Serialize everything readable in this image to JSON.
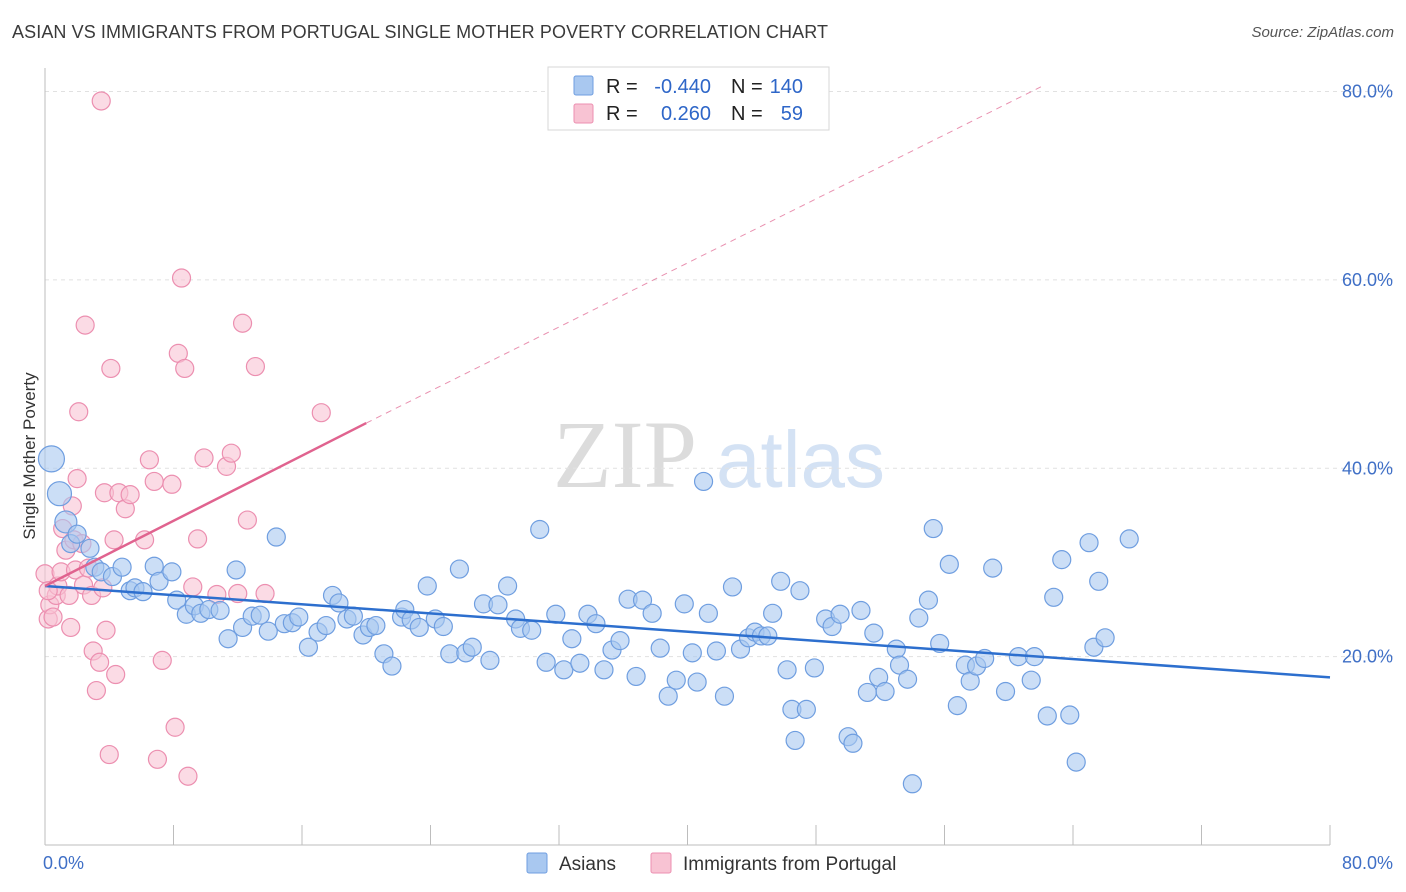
{
  "header": {
    "title": "ASIAN VS IMMIGRANTS FROM PORTUGAL SINGLE MOTHER POVERTY CORRELATION CHART",
    "source": "Source: ZipAtlas.com"
  },
  "watermark": {
    "zip": "ZIP",
    "atlas": "atlas"
  },
  "legend": {
    "r_label": "R =",
    "n_label": "N =",
    "rows": [
      {
        "series": "Asians",
        "r": "-0.440",
        "n": "140",
        "color": "#7aa6e6"
      },
      {
        "series": "Immigrants from Portugal",
        "r": "0.260",
        "n": "59",
        "color": "#f09ab7"
      }
    ]
  },
  "colors": {
    "asians_fill": "#a9c8f0",
    "asians_stroke": "#6f9ee0",
    "asians_line": "#2d6fce",
    "portugal_fill": "#f8c3d3",
    "portugal_stroke": "#ec8fb0",
    "portugal_line": "#e0638f",
    "grid": "#e1e1e1",
    "tick_label": "#3f6fc6"
  },
  "chart_data": {
    "type": "scatter",
    "title": "ASIAN VS IMMIGRANTS FROM PORTUGAL SINGLE MOTHER POVERTY CORRELATION CHART",
    "ylabel": "Single Mother Poverty",
    "xlabel": "",
    "xlim": [
      0,
      80
    ],
    "ylim": [
      0,
      82.5
    ],
    "x_tick_labels": [
      "0.0%",
      "80.0%"
    ],
    "y_ticks": [
      20,
      40,
      60,
      80
    ],
    "y_tick_labels": [
      "20.0%",
      "40.0%",
      "60.0%",
      "80.0%"
    ],
    "grid": true,
    "legend_position": "top-center",
    "series": [
      {
        "name": "Asians",
        "r": -0.44,
        "n": 140,
        "trend": {
          "x": [
            0,
            80
          ],
          "y": [
            27.5,
            17.8
          ]
        },
        "points": [
          [
            0.4,
            41.0
          ],
          [
            0.9,
            37.3
          ],
          [
            1.3,
            34.3
          ],
          [
            1.6,
            32.0
          ],
          [
            2.0,
            33.0
          ],
          [
            2.8,
            31.5
          ],
          [
            3.1,
            29.5
          ],
          [
            3.5,
            29.0
          ],
          [
            4.2,
            28.5
          ],
          [
            4.8,
            29.5
          ],
          [
            5.3,
            27.0
          ],
          [
            5.6,
            27.3
          ],
          [
            6.1,
            26.9
          ],
          [
            6.8,
            29.6
          ],
          [
            7.1,
            28.0
          ],
          [
            7.9,
            29.0
          ],
          [
            8.2,
            26.0
          ],
          [
            8.8,
            24.5
          ],
          [
            9.3,
            25.4
          ],
          [
            9.7,
            24.6
          ],
          [
            10.2,
            25.0
          ],
          [
            10.9,
            24.9
          ],
          [
            11.4,
            21.9
          ],
          [
            11.9,
            29.2
          ],
          [
            12.3,
            23.1
          ],
          [
            12.9,
            24.3
          ],
          [
            13.4,
            24.4
          ],
          [
            13.9,
            22.7
          ],
          [
            14.4,
            32.7
          ],
          [
            14.9,
            23.5
          ],
          [
            15.4,
            23.6
          ],
          [
            15.8,
            24.2
          ],
          [
            16.4,
            21.0
          ],
          [
            17.0,
            22.6
          ],
          [
            17.5,
            23.3
          ],
          [
            17.9,
            26.5
          ],
          [
            18.3,
            25.7
          ],
          [
            18.8,
            24.0
          ],
          [
            19.2,
            24.3
          ],
          [
            19.8,
            22.3
          ],
          [
            20.2,
            23.1
          ],
          [
            20.6,
            23.3
          ],
          [
            21.1,
            20.3
          ],
          [
            21.6,
            19.0
          ],
          [
            22.2,
            24.2
          ],
          [
            22.4,
            25.0
          ],
          [
            22.8,
            23.9
          ],
          [
            23.3,
            23.1
          ],
          [
            23.8,
            27.5
          ],
          [
            24.3,
            24.0
          ],
          [
            24.8,
            23.2
          ],
          [
            25.2,
            20.3
          ],
          [
            25.8,
            29.3
          ],
          [
            26.2,
            20.4
          ],
          [
            26.6,
            21.0
          ],
          [
            27.3,
            25.6
          ],
          [
            27.7,
            19.6
          ],
          [
            28.2,
            25.5
          ],
          [
            28.8,
            27.5
          ],
          [
            29.3,
            24.0
          ],
          [
            29.6,
            23.0
          ],
          [
            30.3,
            22.8
          ],
          [
            30.8,
            33.5
          ],
          [
            31.2,
            19.4
          ],
          [
            31.8,
            24.5
          ],
          [
            32.3,
            18.6
          ],
          [
            32.8,
            21.9
          ],
          [
            33.3,
            19.3
          ],
          [
            33.8,
            24.5
          ],
          [
            34.3,
            23.5
          ],
          [
            34.8,
            18.6
          ],
          [
            35.3,
            20.7
          ],
          [
            35.8,
            21.7
          ],
          [
            36.3,
            26.1
          ],
          [
            36.8,
            17.9
          ],
          [
            37.2,
            26.0
          ],
          [
            37.8,
            24.6
          ],
          [
            38.3,
            20.9
          ],
          [
            38.8,
            15.8
          ],
          [
            39.3,
            17.5
          ],
          [
            39.8,
            25.6
          ],
          [
            40.3,
            20.4
          ],
          [
            40.6,
            17.3
          ],
          [
            41.0,
            38.6
          ],
          [
            41.3,
            24.6
          ],
          [
            41.8,
            20.6
          ],
          [
            42.3,
            15.8
          ],
          [
            42.8,
            27.4
          ],
          [
            43.3,
            20.8
          ],
          [
            43.8,
            22.0
          ],
          [
            44.2,
            22.6
          ],
          [
            44.6,
            22.2
          ],
          [
            45.0,
            22.2
          ],
          [
            45.3,
            24.6
          ],
          [
            45.8,
            28.0
          ],
          [
            46.2,
            18.6
          ],
          [
            46.5,
            14.4
          ],
          [
            46.7,
            11.1
          ],
          [
            47.0,
            27.0
          ],
          [
            47.4,
            14.4
          ],
          [
            47.9,
            18.8
          ],
          [
            48.6,
            24.0
          ],
          [
            49.0,
            23.2
          ],
          [
            49.5,
            24.5
          ],
          [
            50.0,
            11.5
          ],
          [
            50.3,
            10.8
          ],
          [
            50.8,
            24.9
          ],
          [
            51.2,
            16.2
          ],
          [
            51.6,
            22.5
          ],
          [
            51.9,
            17.8
          ],
          [
            52.3,
            16.3
          ],
          [
            53.0,
            20.8
          ],
          [
            53.2,
            19.1
          ],
          [
            53.7,
            17.6
          ],
          [
            54.0,
            6.5
          ],
          [
            54.4,
            24.1
          ],
          [
            55.0,
            26.0
          ],
          [
            55.3,
            33.6
          ],
          [
            55.7,
            21.4
          ],
          [
            56.3,
            29.8
          ],
          [
            56.8,
            14.8
          ],
          [
            57.3,
            19.1
          ],
          [
            57.6,
            17.4
          ],
          [
            58.0,
            19.0
          ],
          [
            58.5,
            19.8
          ],
          [
            59.0,
            29.4
          ],
          [
            59.8,
            16.3
          ],
          [
            60.6,
            20.0
          ],
          [
            61.4,
            17.5
          ],
          [
            61.6,
            20.0
          ],
          [
            62.4,
            13.7
          ],
          [
            62.8,
            26.3
          ],
          [
            63.3,
            30.3
          ],
          [
            63.8,
            13.8
          ],
          [
            64.2,
            8.8
          ],
          [
            65.0,
            32.1
          ],
          [
            65.3,
            21.0
          ],
          [
            65.6,
            28.0
          ],
          [
            66.0,
            22.0
          ],
          [
            67.5,
            32.5
          ]
        ]
      },
      {
        "name": "Immigrants from Portugal",
        "r": 0.26,
        "n": 59,
        "trend": {
          "x": [
            0,
            20
          ],
          "y": [
            27.5,
            44.8
          ]
        },
        "trend_extended": {
          "x": [
            20,
            62
          ],
          "y": [
            44.8,
            80.5
          ]
        },
        "points": [
          [
            0.0,
            28.8
          ],
          [
            0.2,
            24.0
          ],
          [
            0.3,
            25.5
          ],
          [
            0.5,
            24.2
          ],
          [
            0.7,
            26.5
          ],
          [
            0.8,
            27.5
          ],
          [
            1.0,
            29.0
          ],
          [
            1.1,
            33.6
          ],
          [
            1.3,
            31.3
          ],
          [
            1.5,
            26.5
          ],
          [
            1.6,
            23.1
          ],
          [
            1.8,
            32.4
          ],
          [
            1.9,
            29.2
          ],
          [
            2.0,
            38.9
          ],
          [
            2.1,
            46.0
          ],
          [
            2.3,
            32.0
          ],
          [
            2.4,
            27.6
          ],
          [
            2.5,
            55.2
          ],
          [
            2.7,
            29.4
          ],
          [
            2.9,
            26.5
          ],
          [
            3.0,
            20.6
          ],
          [
            3.2,
            16.4
          ],
          [
            3.4,
            19.4
          ],
          [
            3.5,
            79.0
          ],
          [
            3.6,
            27.3
          ],
          [
            3.7,
            37.4
          ],
          [
            3.8,
            22.8
          ],
          [
            4.0,
            9.6
          ],
          [
            4.1,
            50.6
          ],
          [
            4.3,
            32.4
          ],
          [
            4.4,
            18.1
          ],
          [
            4.6,
            37.4
          ],
          [
            5.0,
            35.7
          ],
          [
            5.3,
            37.2
          ],
          [
            6.2,
            32.4
          ],
          [
            6.5,
            40.9
          ],
          [
            6.8,
            38.6
          ],
          [
            7.0,
            9.1
          ],
          [
            7.3,
            19.6
          ],
          [
            7.9,
            38.3
          ],
          [
            8.1,
            12.5
          ],
          [
            8.3,
            52.2
          ],
          [
            8.5,
            60.2
          ],
          [
            8.7,
            50.6
          ],
          [
            8.9,
            7.3
          ],
          [
            9.2,
            27.4
          ],
          [
            9.5,
            32.5
          ],
          [
            9.9,
            41.1
          ],
          [
            10.7,
            26.6
          ],
          [
            11.3,
            40.2
          ],
          [
            11.6,
            41.6
          ],
          [
            12.0,
            26.7
          ],
          [
            12.3,
            55.4
          ],
          [
            12.6,
            34.5
          ],
          [
            13.1,
            50.8
          ],
          [
            13.7,
            26.7
          ],
          [
            17.2,
            45.9
          ],
          [
            0.2,
            27.0
          ],
          [
            1.7,
            36.0
          ]
        ]
      }
    ]
  }
}
